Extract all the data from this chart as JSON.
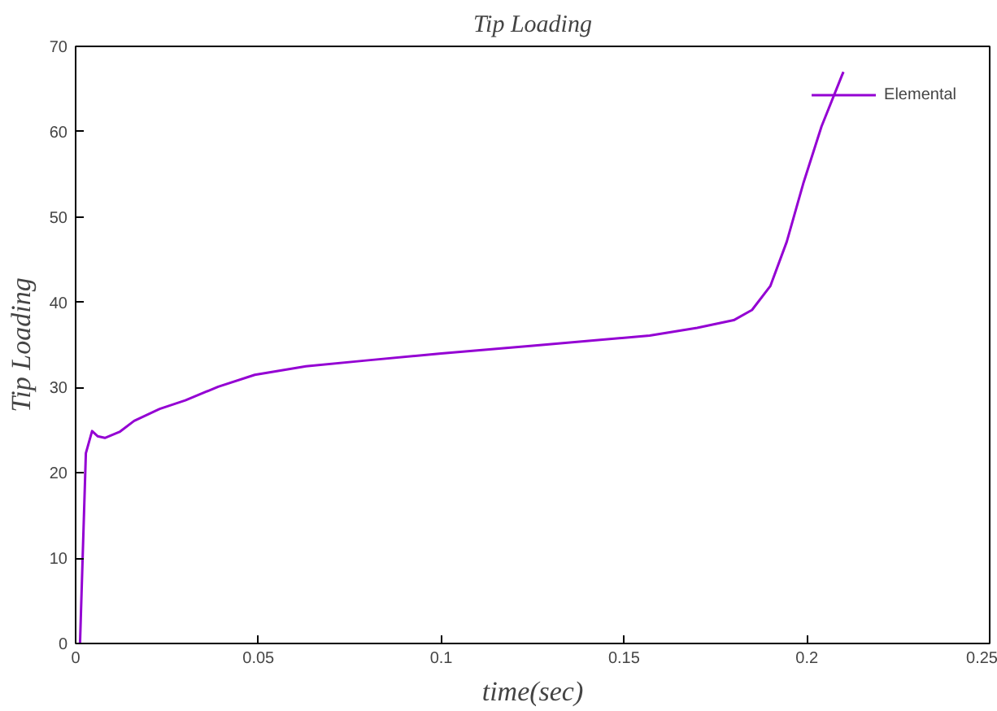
{
  "chart_data": {
    "type": "line",
    "title": "Tip Loading",
    "xlabel": "time(sec)",
    "ylabel": "Tip Loading",
    "xlim": [
      0,
      0.25
    ],
    "ylim": [
      0,
      70
    ],
    "xticks": [
      0,
      0.05,
      0.1,
      0.15,
      0.2,
      0.25
    ],
    "yticks": [
      0,
      10,
      20,
      30,
      40,
      50,
      60,
      70
    ],
    "grid": false,
    "legend": "top right",
    "series": [
      {
        "name": "Elemental",
        "color": "#9400d3",
        "x": [
          0.0012,
          0.0028,
          0.0045,
          0.006,
          0.008,
          0.012,
          0.016,
          0.023,
          0.03,
          0.039,
          0.049,
          0.063,
          0.08,
          0.1,
          0.125,
          0.157,
          0.17,
          0.18,
          0.185,
          0.19,
          0.1945,
          0.199,
          0.204,
          0.2096,
          0.21
        ],
        "values": [
          0,
          22.3,
          24.9,
          24.3,
          24.1,
          24.8,
          26.1,
          27.5,
          28.5,
          30.1,
          31.5,
          32.5,
          33.2,
          34,
          34.9,
          36.1,
          37,
          37.9,
          39.1,
          41.9,
          47.1,
          53.9,
          60.6,
          66.6,
          67
        ]
      }
    ]
  }
}
